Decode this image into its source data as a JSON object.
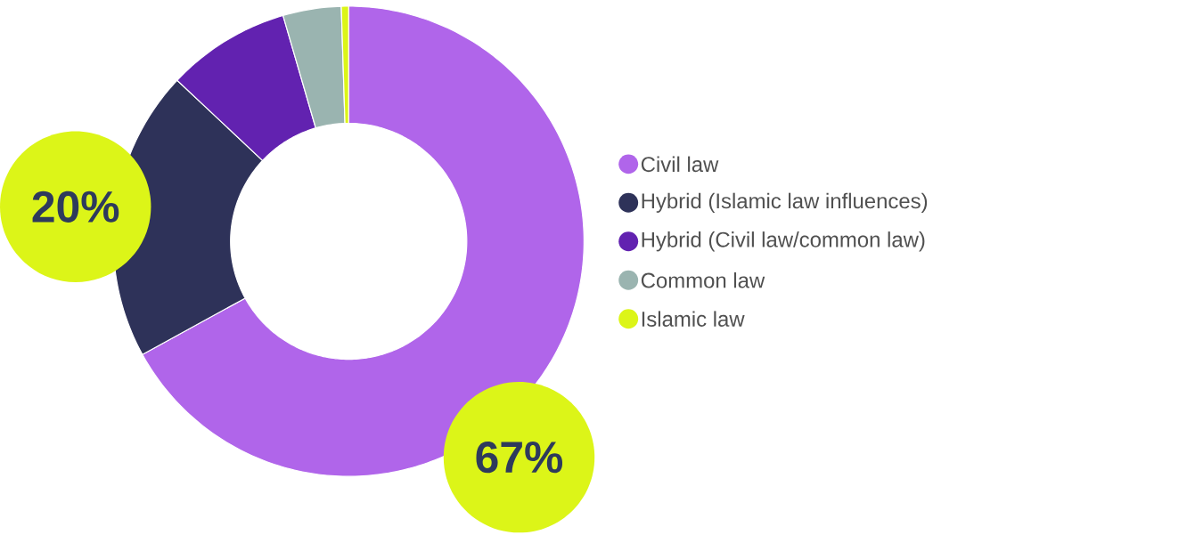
{
  "chart_data": {
    "type": "donut",
    "categories": [
      "Civil law",
      "Hybrid (Islamic law influences)",
      "Hybrid (Civil law/common law)",
      "Common law",
      "Islamic law"
    ],
    "values": [
      67,
      20,
      8.5,
      4,
      0.5
    ],
    "colors": [
      "#b065ea",
      "#2e3259",
      "#6222b0",
      "#9ab4b0",
      "#dcf518"
    ],
    "value_labels": [
      "67%",
      "20%",
      null,
      null,
      null
    ],
    "legend": "right"
  }
}
